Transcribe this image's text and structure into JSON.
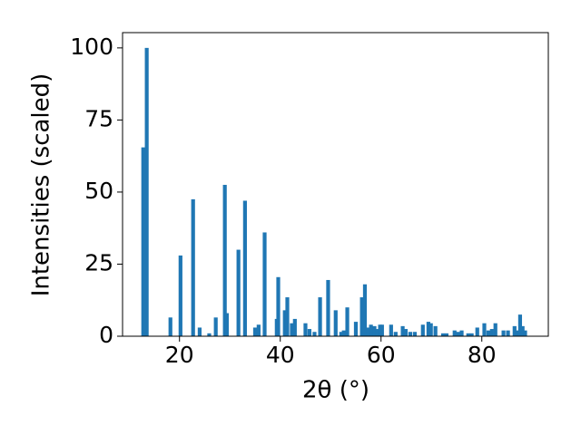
{
  "chart_data": {
    "type": "bar",
    "xlabel": "2θ (°)",
    "ylabel": "Intensities (scaled)",
    "color": "#1f77b4",
    "x": [
      12.8,
      13.5,
      18.2,
      20.2,
      22.7,
      24.0,
      25.9,
      27.2,
      29.0,
      29.4,
      31.7,
      33.0,
      35.0,
      35.7,
      36.9,
      39.3,
      39.6,
      40.9,
      41.4,
      42.3,
      42.9,
      45.0,
      45.8,
      46.8,
      47.9,
      49.5,
      51.0,
      52.1,
      52.6,
      53.3,
      55.0,
      56.2,
      56.8,
      57.5,
      58.0,
      58.7,
      59.3,
      59.8,
      60.2,
      62.0,
      62.9,
      64.3,
      64.9,
      65.8,
      66.7,
      68.3,
      69.4,
      69.9,
      70.8,
      72.3,
      73.0,
      74.6,
      75.3,
      76.0,
      77.3,
      78.0,
      79.1,
      80.5,
      81.3,
      82.0,
      82.7,
      84.3,
      85.2,
      86.5,
      87.0,
      87.6,
      88.1,
      88.6
    ],
    "values": [
      65.5,
      100,
      6.5,
      28,
      47.5,
      3,
      1,
      6.5,
      52.5,
      8,
      30,
      47,
      3,
      4,
      36,
      6,
      20.5,
      9,
      13.5,
      4.5,
      6,
      4.5,
      2.5,
      1.5,
      13.5,
      19.5,
      9,
      1.5,
      2,
      10,
      5,
      13.5,
      18,
      3,
      4,
      3.5,
      2.5,
      4,
      4,
      4,
      1.5,
      3.5,
      2.5,
      1.5,
      1.5,
      4,
      5,
      4.5,
      3.5,
      1,
      1,
      2,
      1.5,
      2,
      1,
      1,
      3,
      4.5,
      2,
      2.5,
      4.5,
      2,
      2,
      3.5,
      2,
      7.5,
      3.5,
      2
    ],
    "xlim": [
      8.7,
      93.2
    ],
    "ylim": [
      0,
      105.3
    ],
    "xticks": [
      20,
      40,
      60,
      80
    ],
    "yticks": [
      0,
      25,
      50,
      75,
      100
    ]
  }
}
